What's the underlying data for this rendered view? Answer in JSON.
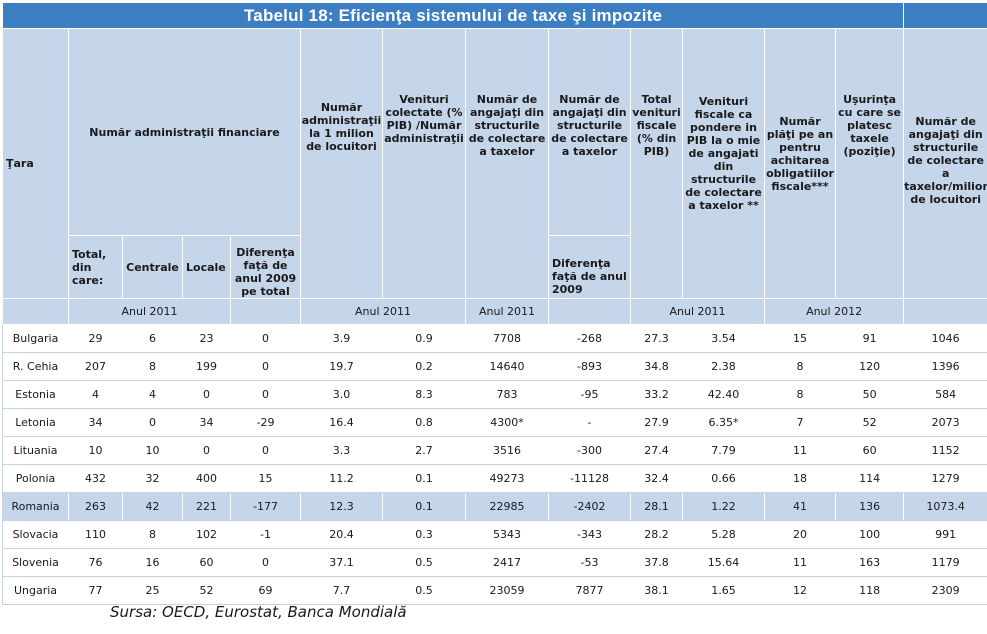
{
  "title": "Tabelul 18: Eficienţa sistemului de taxe şi impozite",
  "headers": {
    "tara": "Ţara",
    "numar_administratii": "Număr administraţii financiare",
    "total_din_care": "Total, din care:",
    "centrale": "Centrale",
    "locale": "Locale",
    "diferenta_2009_total": "Diferenţa faţă de anul 2009 pe total",
    "admin_per_milion": "Număr administraţii la 1 milion de locuitori",
    "venituri_per_admin": "Venituri colectate (% PIB) /Număr administraţii",
    "angajati": "Număr de angajaţi din structurile de colectare a taxelor",
    "angajati_diff": "Număr de angajaţi din structurile de colectare a taxelor",
    "diferenta_2009": "Diferenţa faţă de anul 2009",
    "total_venituri": "Total venituri fiscale (% din PIB)",
    "venituri_pondere": "Venituri fiscale ca pondere in PIB la o mie de angajati din structurile de colectare a taxelor **",
    "numar_plati": "Număr plăţi pe an pentru achitarea obligatiilor fiscale***",
    "usurinta": "Uşurinţa cu care se platesc taxele (poziţie)",
    "angajati_per_milion": "Număr de angajaţi din structurile de colectare a taxelor/milion de locuitori"
  },
  "bands": {
    "a2011_1": "Anul 2011",
    "a2011_2": "Anul 2011",
    "a2011_3": "Anul 2011",
    "a2011_4": "Anul 2011",
    "a2012": "Anul 2012"
  },
  "rows": [
    {
      "tara": "Bulgaria",
      "total": "29",
      "centrale": "6",
      "locale": "23",
      "dif_admin": "0",
      "admin_mil": "3.9",
      "venit_admin": "0.9",
      "angajati": "7708",
      "dif_angajati": "-268",
      "total_venit": "27.3",
      "pondere": "3.54",
      "plati": "15",
      "usurinta": "91",
      "angajati_mil": "1046",
      "highlight": false
    },
    {
      "tara": "R. Cehia",
      "total": "207",
      "centrale": "8",
      "locale": "199",
      "dif_admin": "0",
      "admin_mil": "19.7",
      "venit_admin": "0.2",
      "angajati": "14640",
      "dif_angajati": "-893",
      "total_venit": "34.8",
      "pondere": "2.38",
      "plati": "8",
      "usurinta": "120",
      "angajati_mil": "1396",
      "highlight": false
    },
    {
      "tara": "Estonia",
      "total": "4",
      "centrale": "4",
      "locale": "0",
      "dif_admin": "0",
      "admin_mil": "3.0",
      "venit_admin": "8.3",
      "angajati": "783",
      "dif_angajati": "-95",
      "total_venit": "33.2",
      "pondere": "42.40",
      "plati": "8",
      "usurinta": "50",
      "angajati_mil": "584",
      "highlight": false
    },
    {
      "tara": "Letonia",
      "total": "34",
      "centrale": "0",
      "locale": "34",
      "dif_admin": "-29",
      "admin_mil": "16.4",
      "venit_admin": "0.8",
      "angajati": "4300*",
      "dif_angajati": "-",
      "total_venit": "27.9",
      "pondere": "6.35*",
      "plati": "7",
      "usurinta": "52",
      "angajati_mil": "2073",
      "highlight": false
    },
    {
      "tara": "Lituania",
      "total": "10",
      "centrale": "10",
      "locale": "0",
      "dif_admin": "0",
      "admin_mil": "3.3",
      "venit_admin": "2.7",
      "angajati": "3516",
      "dif_angajati": "-300",
      "total_venit": "27.4",
      "pondere": "7.79",
      "plati": "11",
      "usurinta": "60",
      "angajati_mil": "1152",
      "highlight": false
    },
    {
      "tara": "Polonia",
      "total": "432",
      "centrale": "32",
      "locale": "400",
      "dif_admin": "15",
      "admin_mil": "11.2",
      "venit_admin": "0.1",
      "angajati": "49273",
      "dif_angajati": "-11128",
      "total_venit": "32.4",
      "pondere": "0.66",
      "plati": "18",
      "usurinta": "114",
      "angajati_mil": "1279",
      "highlight": false
    },
    {
      "tara": "Romania",
      "total": "263",
      "centrale": "42",
      "locale": "221",
      "dif_admin": "-177",
      "admin_mil": "12.3",
      "venit_admin": "0.1",
      "angajati": "22985",
      "dif_angajati": "-2402",
      "total_venit": "28.1",
      "pondere": "1.22",
      "plati": "41",
      "usurinta": "136",
      "angajati_mil": "1073.4",
      "highlight": true
    },
    {
      "tara": "Slovacia",
      "total": "110",
      "centrale": "8",
      "locale": "102",
      "dif_admin": "-1",
      "admin_mil": "20.4",
      "venit_admin": "0.3",
      "angajati": "5343",
      "dif_angajati": "-343",
      "total_venit": "28.2",
      "pondere": "5.28",
      "plati": "20",
      "usurinta": "100",
      "angajati_mil": "991",
      "highlight": false
    },
    {
      "tara": "Slovenia",
      "total": "76",
      "centrale": "16",
      "locale": "60",
      "dif_admin": "0",
      "admin_mil": "37.1",
      "venit_admin": "0.5",
      "angajati": "2417",
      "dif_angajati": "-53",
      "total_venit": "37.8",
      "pondere": "15.64",
      "plati": "11",
      "usurinta": "163",
      "angajati_mil": "1179",
      "highlight": false
    },
    {
      "tara": "Ungaria",
      "total": "77",
      "centrale": "25",
      "locale": "52",
      "dif_admin": "69",
      "admin_mil": "7.7",
      "venit_admin": "0.5",
      "angajati": "23059",
      "dif_angajati": "7877",
      "total_venit": "38.1",
      "pondere": "1.65",
      "plati": "12",
      "usurinta": "118",
      "angajati_mil": "2309",
      "highlight": false
    }
  ],
  "source": "Sursa: OECD, Eurostat, Banca Mondială",
  "colors": {
    "title_bg": "#3d7ec2",
    "header_bg": "#c5d6eb",
    "highlight_bg": "#c5d6eb"
  }
}
